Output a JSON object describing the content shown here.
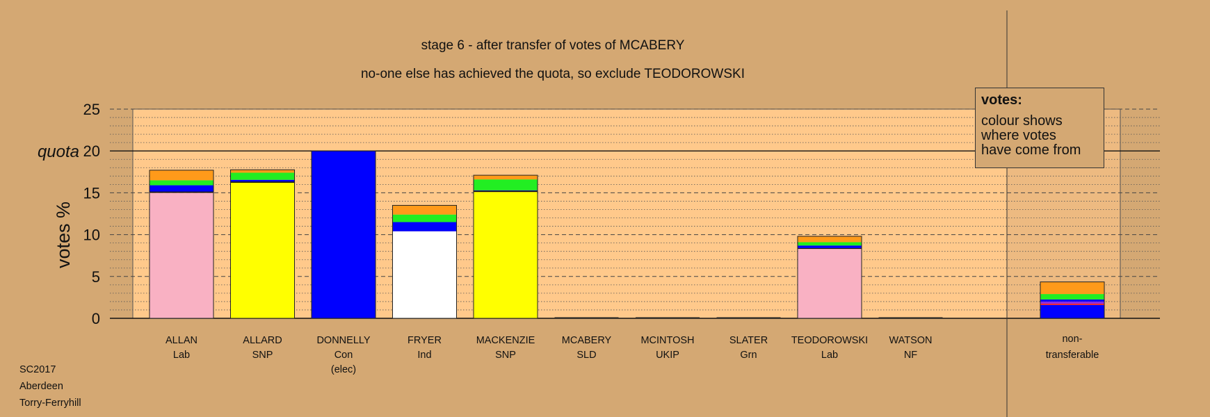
{
  "chart_data": {
    "type": "bar",
    "stacked": true,
    "title": "stage 6 - after transfer of votes of MCABERY",
    "subtitle": "no-one else has achieved the quota, so exclude TEODOROWSKI",
    "ylabel": "votes %",
    "quota_label": "quota",
    "quota": 20,
    "ylim": [
      0,
      25
    ],
    "yticks": [
      0,
      5,
      10,
      15,
      20,
      25
    ],
    "grid": true,
    "legend_title": "votes:",
    "legend_text": "colour shows\nwhere votes\nhave come from",
    "colors": {
      "pink": "#f9b1c3",
      "yellow": "#ffff00",
      "blue": "#0000ff",
      "white": "#ffffff",
      "green": "#22ee22",
      "orange": "#ff9a1a",
      "black": "#111111",
      "purple": "#8a2be2",
      "red": "#ff2020",
      "plot_bg": "#ffc98b",
      "page_bg": "#d4a873"
    },
    "candidates": [
      {
        "name": "ALLAN",
        "party": "Lab",
        "note": "",
        "segments": [
          {
            "color": "pink",
            "value": 15.0
          },
          {
            "color": "black",
            "value": 0.15
          },
          {
            "color": "blue",
            "value": 0.75
          },
          {
            "color": "green",
            "value": 0.6
          },
          {
            "color": "orange",
            "value": 1.2
          }
        ]
      },
      {
        "name": "ALLARD",
        "party": "SNP",
        "note": "",
        "segments": [
          {
            "color": "yellow",
            "value": 16.2
          },
          {
            "color": "black",
            "value": 0.15
          },
          {
            "color": "blue",
            "value": 0.2
          },
          {
            "color": "green",
            "value": 0.85
          },
          {
            "color": "orange",
            "value": 0.35
          }
        ]
      },
      {
        "name": "DONNELLY",
        "party": "Con",
        "note": "(elec)",
        "segments": [
          {
            "color": "blue",
            "value": 20.0
          }
        ]
      },
      {
        "name": "FRYER",
        "party": "Ind",
        "note": "",
        "segments": [
          {
            "color": "white",
            "value": 10.4
          },
          {
            "color": "blue",
            "value": 1.1
          },
          {
            "color": "green",
            "value": 0.9
          },
          {
            "color": "orange",
            "value": 1.1
          }
        ]
      },
      {
        "name": "MACKENZIE",
        "party": "SNP",
        "note": "",
        "segments": [
          {
            "color": "yellow",
            "value": 15.1
          },
          {
            "color": "black",
            "value": 0.15
          },
          {
            "color": "blue",
            "value": 0.05
          },
          {
            "color": "green",
            "value": 1.3
          },
          {
            "color": "orange",
            "value": 0.5
          }
        ]
      },
      {
        "name": "MCABERY",
        "party": "SLD",
        "note": "",
        "segments": []
      },
      {
        "name": "MCINTOSH",
        "party": "UKIP",
        "note": "",
        "segments": []
      },
      {
        "name": "SLATER",
        "party": "Grn",
        "note": "",
        "segments": []
      },
      {
        "name": "TEODOROWSKI",
        "party": "Lab",
        "note": "",
        "segments": [
          {
            "color": "pink",
            "value": 8.3
          },
          {
            "color": "black",
            "value": 0.1
          },
          {
            "color": "blue",
            "value": 0.3
          },
          {
            "color": "green",
            "value": 0.4
          },
          {
            "color": "orange",
            "value": 0.7
          }
        ]
      },
      {
        "name": "WATSON",
        "party": "NF",
        "note": "",
        "segments": []
      }
    ],
    "nontransferable": {
      "label_line1": "non-",
      "label_line2": "transferable",
      "segments": [
        {
          "color": "blue",
          "value": 1.6
        },
        {
          "color": "red",
          "value": 0.15
        },
        {
          "color": "purple",
          "value": 0.25
        },
        {
          "color": "blue",
          "value": 0.25
        },
        {
          "color": "green",
          "value": 0.65
        },
        {
          "color": "orange",
          "value": 1.45
        }
      ]
    }
  },
  "footer": {
    "line1": "SC2017",
    "line2": "Aberdeen",
    "line3": "Torry-Ferryhill"
  }
}
